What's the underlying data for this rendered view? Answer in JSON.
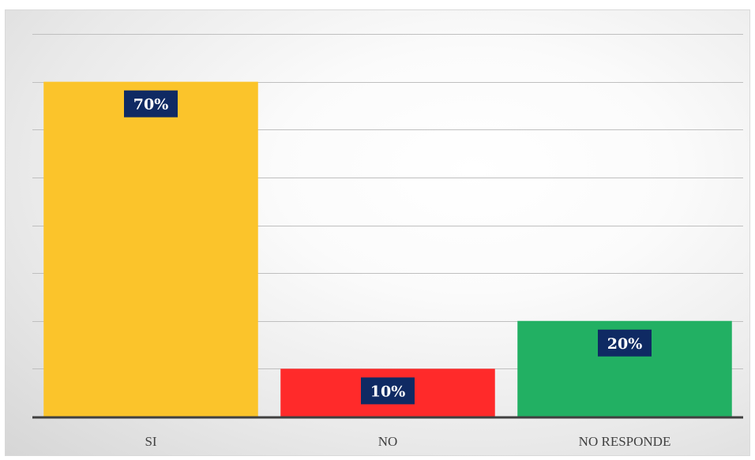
{
  "chart_data": {
    "type": "bar",
    "categories": [
      "SI",
      "NO",
      "NO RESPONDE"
    ],
    "values": [
      70,
      10,
      20
    ],
    "data_labels": [
      "70%",
      "10%",
      "20%"
    ],
    "unit": "%",
    "ylim": [
      0,
      80
    ],
    "y_tick_step": 10,
    "grid": true,
    "y_tick_labels_shown": false,
    "legend": "none",
    "title": "",
    "xlabel": "",
    "ylabel": "",
    "colors": {
      "bars": [
        "#fbc42b",
        "#ff2a2a",
        "#22b063"
      ],
      "data_label_background": "#0f2a63",
      "data_label_text": "#ffffff",
      "gridline": "#bfbfbf",
      "axis": "#404040"
    }
  }
}
